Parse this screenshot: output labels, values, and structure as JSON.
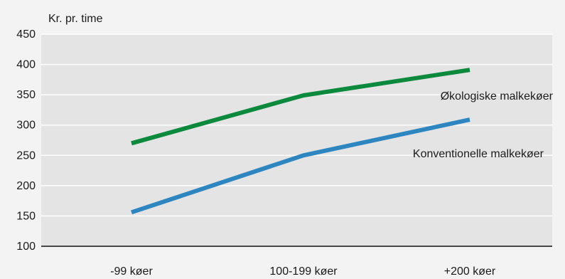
{
  "chart_data": {
    "type": "line",
    "title": "",
    "ylabel": "Kr. pr. time",
    "xlabel": "",
    "categories": [
      "-99 køer",
      "100-199 køer",
      "+200 køer"
    ],
    "ylim": [
      100,
      450
    ],
    "yticks": [
      100,
      150,
      200,
      250,
      300,
      350,
      400,
      450
    ],
    "grid": true,
    "series": [
      {
        "name": "Økologiske malkekøer",
        "values": [
          270,
          349,
          391
        ],
        "color": "#0b8a3e"
      },
      {
        "name": "Konventionelle malkekøer",
        "values": [
          156,
          250,
          309
        ],
        "color": "#2e86c1"
      }
    ]
  },
  "colors": {
    "background": "#f3f3f3",
    "plot_area": "#e4e4e4",
    "gridline": "#ffffff",
    "axis": "#111111"
  }
}
